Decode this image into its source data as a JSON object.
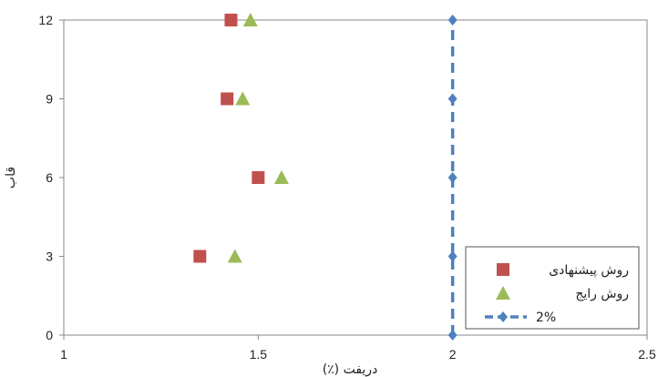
{
  "chart_data": {
    "type": "scatter",
    "title": "",
    "xlabel": "دریفت (٪)",
    "ylabel": "قاب",
    "xlim": [
      1,
      2.5
    ],
    "ylim": [
      0,
      12
    ],
    "xticks": [
      "1",
      "1.5",
      "2",
      "2.5"
    ],
    "yticks": [
      "0",
      "3",
      "6",
      "9",
      "12"
    ],
    "grid": false,
    "legend_position": "bottom-right",
    "series": [
      {
        "name": "روش پیشنهادی",
        "marker": "square",
        "color": "#c0504d",
        "points": [
          [
            1.35,
            3
          ],
          [
            1.5,
            6
          ],
          [
            1.42,
            9
          ],
          [
            1.43,
            12
          ]
        ]
      },
      {
        "name": "روش رایج",
        "marker": "triangle",
        "color": "#9bbb59",
        "points": [
          [
            1.44,
            3
          ],
          [
            1.56,
            6
          ],
          [
            1.46,
            9
          ],
          [
            1.48,
            12
          ]
        ]
      },
      {
        "name": "2%",
        "marker": "diamond",
        "line": "dashed",
        "color": "#4f81bd",
        "points": [
          [
            2,
            0
          ],
          [
            2,
            3
          ],
          [
            2,
            6
          ],
          [
            2,
            9
          ],
          [
            2,
            12
          ]
        ]
      }
    ]
  }
}
